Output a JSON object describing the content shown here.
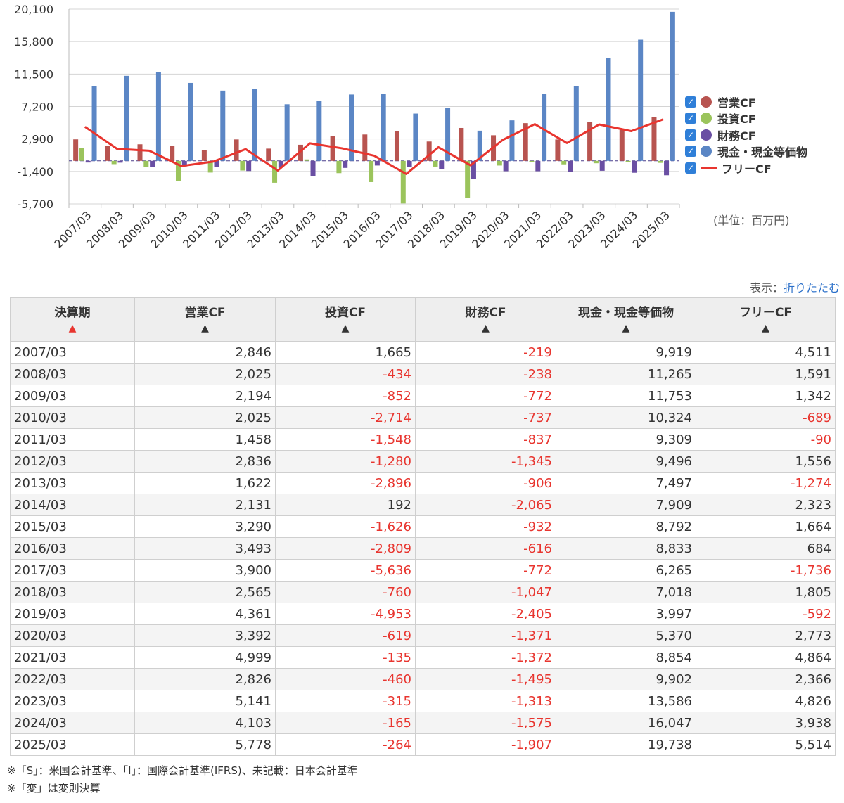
{
  "chart_data": {
    "type": "bar",
    "categories": [
      "2007/03",
      "2008/03",
      "2009/03",
      "2010/03",
      "2011/03",
      "2012/03",
      "2013/03",
      "2014/03",
      "2015/03",
      "2016/03",
      "2017/03",
      "2018/03",
      "2019/03",
      "2020/03",
      "2021/03",
      "2022/03",
      "2023/03",
      "2024/03",
      "2025/03"
    ],
    "series": [
      {
        "name": "営業CF",
        "type": "bar",
        "color": "#b85450",
        "values": [
          2846,
          2025,
          2194,
          2025,
          1458,
          2836,
          1622,
          2131,
          3290,
          3493,
          3900,
          2565,
          4361,
          3392,
          4999,
          2826,
          5141,
          4103,
          5778
        ]
      },
      {
        "name": "投資CF",
        "type": "bar",
        "color": "#9bc45c",
        "values": [
          1665,
          -434,
          -852,
          -2714,
          -1548,
          -1280,
          -2896,
          192,
          -1626,
          -2809,
          -5636,
          -760,
          -4953,
          -619,
          -135,
          -460,
          -315,
          -165,
          -264
        ]
      },
      {
        "name": "財務CF",
        "type": "bar",
        "color": "#6a4fa3",
        "values": [
          -219,
          -238,
          -772,
          -737,
          -837,
          -1345,
          -906,
          -2065,
          -932,
          -616,
          -772,
          -1047,
          -2405,
          -1371,
          -1372,
          -1495,
          -1313,
          -1575,
          -1907
        ]
      },
      {
        "name": "現金・現金等価物",
        "type": "bar",
        "color": "#5b86c5",
        "values": [
          9919,
          11265,
          11753,
          10324,
          9309,
          9496,
          7497,
          7909,
          8792,
          8833,
          6265,
          7018,
          3997,
          5370,
          8854,
          9902,
          13586,
          16047,
          19738
        ]
      },
      {
        "name": "フリーCF",
        "type": "line",
        "color": "#e8352f",
        "values": [
          4511,
          1591,
          1342,
          -689,
          -90,
          1556,
          -1274,
          2323,
          1664,
          684,
          -1736,
          1805,
          -592,
          2773,
          4864,
          2366,
          4826,
          3938,
          5514
        ]
      }
    ],
    "ylim": [
      -5700,
      20100
    ],
    "yticks": [
      "20,100",
      "15,800",
      "11,500",
      "7,200",
      "2,900",
      "-1,400",
      "-5,700"
    ],
    "unit_label": "(単位：百万円)",
    "legend_position": "right"
  },
  "display": {
    "label": "表示：",
    "toggle": "折りたたむ"
  },
  "table": {
    "headers": [
      "決算期",
      "営業CF",
      "投資CF",
      "財務CF",
      "現金・現金等価物",
      "フリーCF"
    ],
    "sort_arrow": "▲",
    "rows": [
      [
        "2007/03",
        "2,846",
        "1,665",
        "-219",
        "9,919",
        "4,511"
      ],
      [
        "2008/03",
        "2,025",
        "-434",
        "-238",
        "11,265",
        "1,591"
      ],
      [
        "2009/03",
        "2,194",
        "-852",
        "-772",
        "11,753",
        "1,342"
      ],
      [
        "2010/03",
        "2,025",
        "-2,714",
        "-737",
        "10,324",
        "-689"
      ],
      [
        "2011/03",
        "1,458",
        "-1,548",
        "-837",
        "9,309",
        "-90"
      ],
      [
        "2012/03",
        "2,836",
        "-1,280",
        "-1,345",
        "9,496",
        "1,556"
      ],
      [
        "2013/03",
        "1,622",
        "-2,896",
        "-906",
        "7,497",
        "-1,274"
      ],
      [
        "2014/03",
        "2,131",
        "192",
        "-2,065",
        "7,909",
        "2,323"
      ],
      [
        "2015/03",
        "3,290",
        "-1,626",
        "-932",
        "8,792",
        "1,664"
      ],
      [
        "2016/03",
        "3,493",
        "-2,809",
        "-616",
        "8,833",
        "684"
      ],
      [
        "2017/03",
        "3,900",
        "-5,636",
        "-772",
        "6,265",
        "-1,736"
      ],
      [
        "2018/03",
        "2,565",
        "-760",
        "-1,047",
        "7,018",
        "1,805"
      ],
      [
        "2019/03",
        "4,361",
        "-4,953",
        "-2,405",
        "3,997",
        "-592"
      ],
      [
        "2020/03",
        "3,392",
        "-619",
        "-1,371",
        "5,370",
        "2,773"
      ],
      [
        "2021/03",
        "4,999",
        "-135",
        "-1,372",
        "8,854",
        "4,864"
      ],
      [
        "2022/03",
        "2,826",
        "-460",
        "-1,495",
        "9,902",
        "2,366"
      ],
      [
        "2023/03",
        "5,141",
        "-315",
        "-1,313",
        "13,586",
        "4,826"
      ],
      [
        "2024/03",
        "4,103",
        "-165",
        "-1,575",
        "16,047",
        "3,938"
      ],
      [
        "2025/03",
        "5,778",
        "-264",
        "-1,907",
        "19,738",
        "5,514"
      ]
    ]
  },
  "notes": [
    "※「S」：米国会計基準、「I」：国際会計基準(IFRS)、未記載：日本会計基準",
    "※「変」は変則決算"
  ],
  "colors": {
    "negative": "#e8352f",
    "sort_active": "#e8352f",
    "link": "#2a6fc9",
    "checkbox": "#2f7fd8"
  }
}
